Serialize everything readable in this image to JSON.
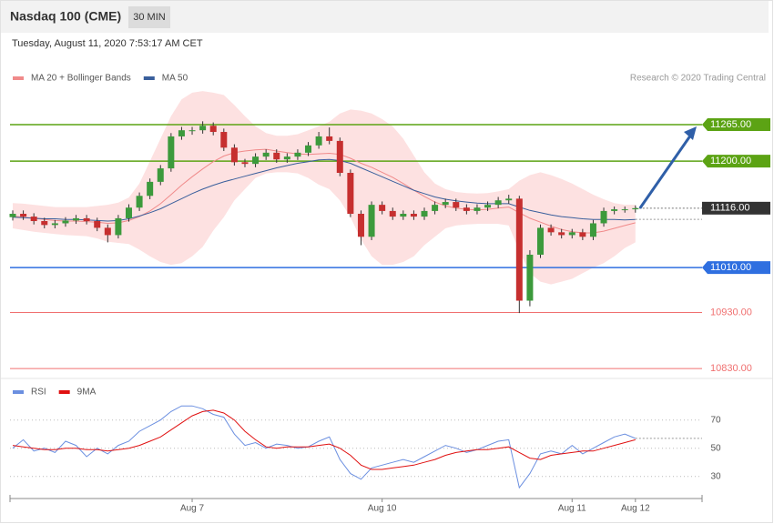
{
  "header": {
    "title": "Nasdaq 100 (CME)",
    "timeframe": "30 MIN",
    "timestamp": "Tuesday, August 11, 2020 7:53:17 AM CET"
  },
  "chart_data": [
    {
      "type": "candlestick",
      "credit": "Research © 2020 Trading Central",
      "ylim": [
        10822,
        11390
      ],
      "up_color": "#3c9a3c",
      "down_color": "#c62f2f",
      "ohlc": {
        "open": [
          11100,
          11106,
          11101,
          11093,
          11086,
          11089,
          11094,
          11098,
          11093,
          11081,
          11068,
          11098,
          11117,
          11138,
          11163,
          11187,
          11244,
          11255,
          11255,
          11263,
          11252,
          11224,
          11198,
          11195,
          11208,
          11215,
          11203,
          11208,
          11215,
          11228,
          11244,
          11236,
          11179,
          11106,
          11065,
          11122,
          11111,
          11101,
          11106,
          11101,
          11111,
          11122,
          11127,
          11117,
          11111,
          11117,
          11122,
          11130,
          11133,
          10951,
          11033,
          11081,
          11073,
          11068,
          11073,
          11065,
          11089,
          11111,
          11114,
          11114
        ],
        "high": [
          11112,
          11112,
          11107,
          11099,
          11095,
          11100,
          11104,
          11104,
          11099,
          11087,
          11104,
          11123,
          11144,
          11169,
          11193,
          11250,
          11261,
          11261,
          11271,
          11269,
          11258,
          11230,
          11204,
          11214,
          11221,
          11221,
          11214,
          11221,
          11234,
          11252,
          11260,
          11242,
          11185,
          11112,
          11128,
          11128,
          11117,
          11112,
          11112,
          11117,
          11128,
          11133,
          11133,
          11123,
          11123,
          11128,
          11136,
          11140,
          11138,
          11041,
          11087,
          11087,
          11079,
          11079,
          11079,
          11095,
          11117,
          11119,
          11119,
          11121
        ],
        "low": [
          11094,
          11095,
          11087,
          11080,
          11080,
          11083,
          11088,
          11087,
          11075,
          11055,
          11062,
          11092,
          11111,
          11132,
          11157,
          11181,
          11238,
          11247,
          11249,
          11246,
          11218,
          11192,
          11189,
          11189,
          11202,
          11197,
          11197,
          11202,
          11209,
          11222,
          11230,
          11173,
          11100,
          11050,
          11059,
          11105,
          11095,
          11095,
          11095,
          11095,
          11105,
          11116,
          11111,
          11105,
          11105,
          11111,
          11116,
          11124,
          10929,
          10941,
          11027,
          11067,
          11062,
          11062,
          11059,
          11059,
          11083,
          11105,
          11108,
          11108
        ],
        "close": [
          11106,
          11101,
          11093,
          11086,
          11089,
          11094,
          11098,
          11093,
          11081,
          11068,
          11098,
          11117,
          11138,
          11163,
          11187,
          11244,
          11255,
          11255,
          11263,
          11252,
          11224,
          11198,
          11195,
          11208,
          11215,
          11203,
          11208,
          11215,
          11228,
          11244,
          11236,
          11179,
          11106,
          11065,
          11122,
          11111,
          11101,
          11106,
          11101,
          11111,
          11122,
          11127,
          11117,
          11111,
          11117,
          11122,
          11130,
          11133,
          10951,
          11033,
          11081,
          11073,
          11068,
          11073,
          11065,
          11089,
          11111,
          11114,
          11114,
          11116
        ]
      },
      "bands": {
        "color": "#fde1e1",
        "upper": [
          11125,
          11124,
          11122,
          11120,
          11118,
          11118,
          11118,
          11118,
          11120,
          11122,
          11126,
          11135,
          11160,
          11200,
          11240,
          11280,
          11310,
          11322,
          11325,
          11322,
          11318,
          11300,
          11280,
          11262,
          11250,
          11245,
          11245,
          11248,
          11255,
          11262,
          11270,
          11285,
          11292,
          11290,
          11285,
          11275,
          11262,
          11240,
          11210,
          11180,
          11160,
          11150,
          11145,
          11143,
          11142,
          11143,
          11146,
          11150,
          11165,
          11175,
          11180,
          11175,
          11168,
          11160,
          11150,
          11140,
          11132,
          11125,
          11122,
          11122
        ],
        "lower": [
          11080,
          11077,
          11074,
          11072,
          11070,
          11068,
          11067,
          11066,
          11062,
          11056,
          11054,
          11052,
          11042,
          11030,
          11020,
          11015,
          11018,
          11030,
          11047,
          11076,
          11100,
          11130,
          11150,
          11170,
          11178,
          11180,
          11180,
          11178,
          11170,
          11158,
          11150,
          11130,
          11100,
          11060,
          11030,
          11015,
          11015,
          11020,
          11030,
          11050,
          11065,
          11080,
          11085,
          11087,
          11088,
          11088,
          11088,
          11085,
          11040,
          11000,
          10985,
          10980,
          10985,
          10990,
          11000,
          11010,
          11018,
          11030,
          11045,
          11055
        ]
      },
      "series": [
        {
          "name": "MA 20 + Bollinger Bands",
          "color": "#f08a8a",
          "values": [
            11102,
            11100,
            11098,
            11096,
            11094,
            11093,
            11093,
            11092,
            11091,
            11089,
            11090,
            11094,
            11101,
            11111,
            11124,
            11140,
            11157,
            11172,
            11186,
            11199,
            11209,
            11215,
            11218,
            11220,
            11221,
            11218,
            11215,
            11213,
            11212,
            11213,
            11214,
            11212,
            11205,
            11196,
            11189,
            11180,
            11171,
            11160,
            11148,
            11137,
            11127,
            11120,
            11116,
            11114,
            11113,
            11114,
            11116,
            11118,
            11108,
            11098,
            11091,
            11084,
            11078,
            11074,
            11072,
            11072,
            11075,
            11080,
            11085,
            11090
          ]
        },
        {
          "name": "MA 50",
          "color": "#3a5f9c",
          "values": [
            11100,
            11099,
            11098,
            11097,
            11097,
            11096,
            11096,
            11095,
            11094,
            11093,
            11094,
            11097,
            11102,
            11108,
            11115,
            11124,
            11133,
            11142,
            11150,
            11157,
            11163,
            11168,
            11173,
            11178,
            11183,
            11188,
            11192,
            11196,
            11199,
            11202,
            11203,
            11201,
            11196,
            11188,
            11180,
            11172,
            11164,
            11156,
            11148,
            11142,
            11136,
            11132,
            11129,
            11127,
            11125,
            11124,
            11124,
            11124,
            11118,
            11112,
            11108,
            11104,
            11101,
            11099,
            11097,
            11096,
            11096,
            11096,
            11095,
            11096
          ]
        }
      ],
      "levels": [
        {
          "value": 11265,
          "label": "11265.00",
          "color": "#5ca314",
          "style": "box"
        },
        {
          "value": 11200,
          "label": "11200.00",
          "color": "#5ca314",
          "style": "box"
        },
        {
          "value": 11116,
          "label": "11116.00",
          "color": "#333333",
          "style": "current"
        },
        {
          "value": 11010,
          "label": "11010.00",
          "color": "#2f6fe0",
          "style": "box"
        },
        {
          "value": 10930,
          "label": "10930.00",
          "color": "#f07070",
          "style": "text"
        },
        {
          "value": 10830,
          "label": "10830.00",
          "color": "#f07070",
          "style": "text"
        }
      ]
    },
    {
      "type": "line",
      "ylim": [
        15,
        84
      ],
      "yticks": [
        70,
        50,
        30
      ],
      "grid": true,
      "categories": [
        null,
        null,
        null,
        null,
        null,
        null,
        null,
        null,
        null,
        null,
        null,
        null,
        null,
        null,
        null,
        null,
        null,
        "Aug 7",
        null,
        null,
        null,
        null,
        null,
        null,
        null,
        null,
        null,
        null,
        null,
        null,
        null,
        null,
        null,
        null,
        null,
        "Aug 10",
        null,
        null,
        null,
        null,
        null,
        null,
        null,
        null,
        null,
        null,
        null,
        null,
        null,
        null,
        null,
        null,
        null,
        "Aug 11",
        null,
        null,
        null,
        null,
        null,
        "Aug 12"
      ],
      "series": [
        {
          "name": "RSI",
          "color": "#6b8fe0",
          "values": [
            50,
            56,
            48,
            50,
            47,
            55,
            52,
            44,
            50,
            46,
            52,
            55,
            62,
            66,
            70,
            76,
            80,
            80,
            78,
            74,
            72,
            60,
            52,
            54,
            50,
            53,
            52,
            50,
            51,
            55,
            58,
            42,
            32,
            28,
            36,
            38,
            40,
            42,
            40,
            44,
            48,
            52,
            50,
            47,
            49,
            52,
            55,
            56,
            22,
            32,
            46,
            48,
            46,
            52,
            46,
            50,
            54,
            58,
            60,
            57
          ]
        },
        {
          "name": "9MA",
          "color": "#e01010",
          "values": [
            52,
            51,
            50,
            49,
            49,
            50,
            50,
            49,
            49,
            48,
            49,
            50,
            52,
            55,
            58,
            63,
            68,
            73,
            76,
            77,
            75,
            70,
            62,
            56,
            51,
            50,
            51,
            51,
            51,
            52,
            53,
            50,
            45,
            38,
            35,
            35,
            36,
            37,
            38,
            40,
            42,
            45,
            47,
            48,
            49,
            49,
            50,
            51,
            47,
            43,
            42,
            45,
            46,
            47,
            48,
            48,
            50,
            52,
            54,
            56
          ]
        }
      ]
    }
  ]
}
